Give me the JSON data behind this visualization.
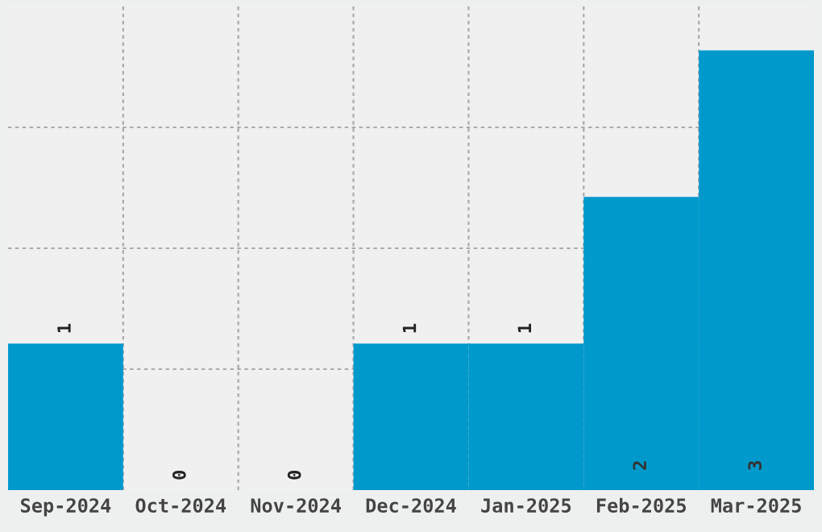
{
  "chart_data": {
    "type": "bar",
    "categories": [
      "Sep-2024",
      "Oct-2024",
      "Nov-2024",
      "Dec-2024",
      "Jan-2025",
      "Feb-2025",
      "Mar-2025"
    ],
    "values": [
      1,
      0,
      0,
      1,
      1,
      2,
      3
    ],
    "color": "#0099cc",
    "ylim": [
      0,
      3.3
    ],
    "yticks": [
      {
        "value": 0.825,
        "label": null
      },
      {
        "value": 1.65,
        "label": null
      },
      {
        "value": 2.475,
        "label": null
      }
    ],
    "grid": true,
    "data_labels": true,
    "tick_labels": "x"
  }
}
